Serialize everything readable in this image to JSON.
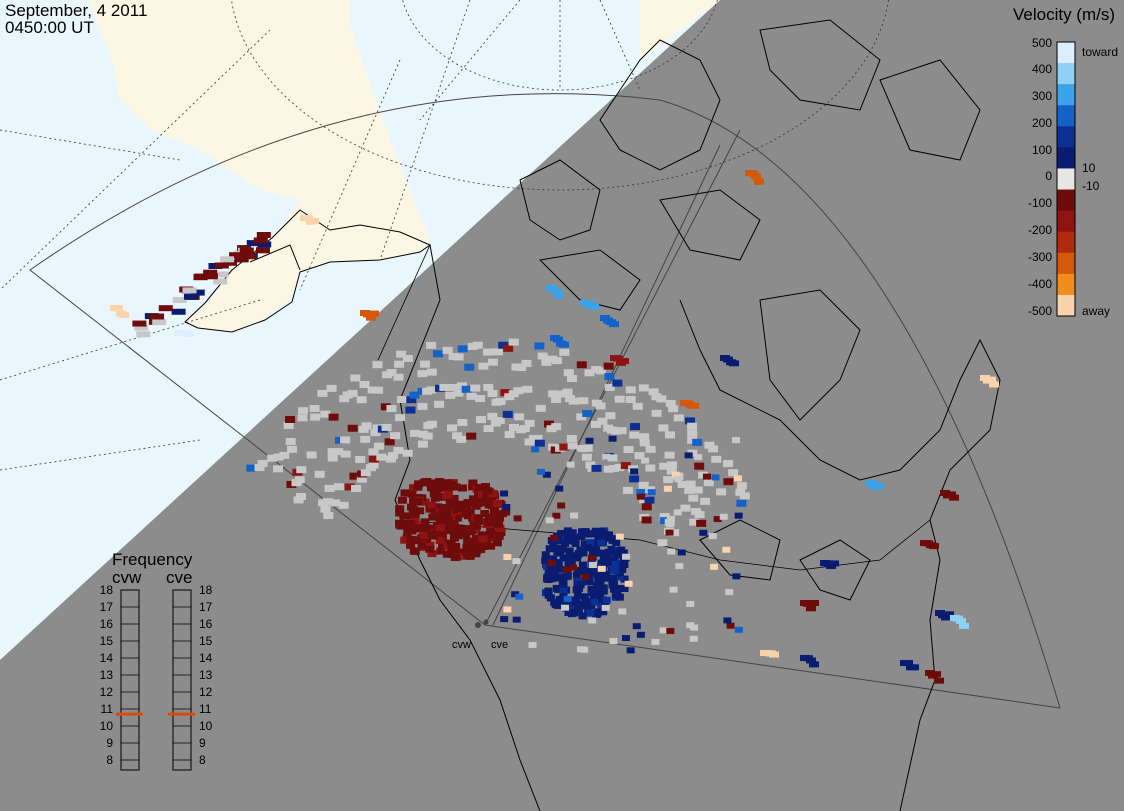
{
  "header": {
    "date": "September, 4 2011",
    "time": "0450:00 UT"
  },
  "colorbar": {
    "title": "Velocity (m/s)",
    "ticks": [
      "500",
      "400",
      "300",
      "200",
      "100",
      "10",
      "0",
      "-10",
      "-100",
      "-200",
      "-300",
      "-400",
      "-500"
    ],
    "toward_label": "toward",
    "away_label": "away",
    "colors": [
      "#dceefa",
      "#8fd0f5",
      "#3aa3ea",
      "#1462c7",
      "#0b2f93",
      "#0a1c70",
      "#e6e6e6",
      "#6e0c0c",
      "#8e1414",
      "#b02a0e",
      "#d2580a",
      "#f28c1d",
      "#f9d3ad"
    ]
  },
  "frequency": {
    "title": "Frequency",
    "radars": [
      "cvw",
      "cve"
    ],
    "levels": [
      "18",
      "17",
      "16",
      "15",
      "14",
      "13",
      "12",
      "11",
      "10",
      "9",
      "8"
    ],
    "cvw_value": 10.7,
    "cve_value": 10.7,
    "marker_color": "#d84a10"
  },
  "stations": [
    {
      "id": "cvw",
      "label": "cvw"
    },
    {
      "id": "cve",
      "label": "cve"
    }
  ],
  "colors": {
    "night": "#8c8c8c",
    "ocean_day": "#eaf6fd",
    "land_day": "#fbf7e4",
    "scatter_gray": "#c8c8c8"
  }
}
